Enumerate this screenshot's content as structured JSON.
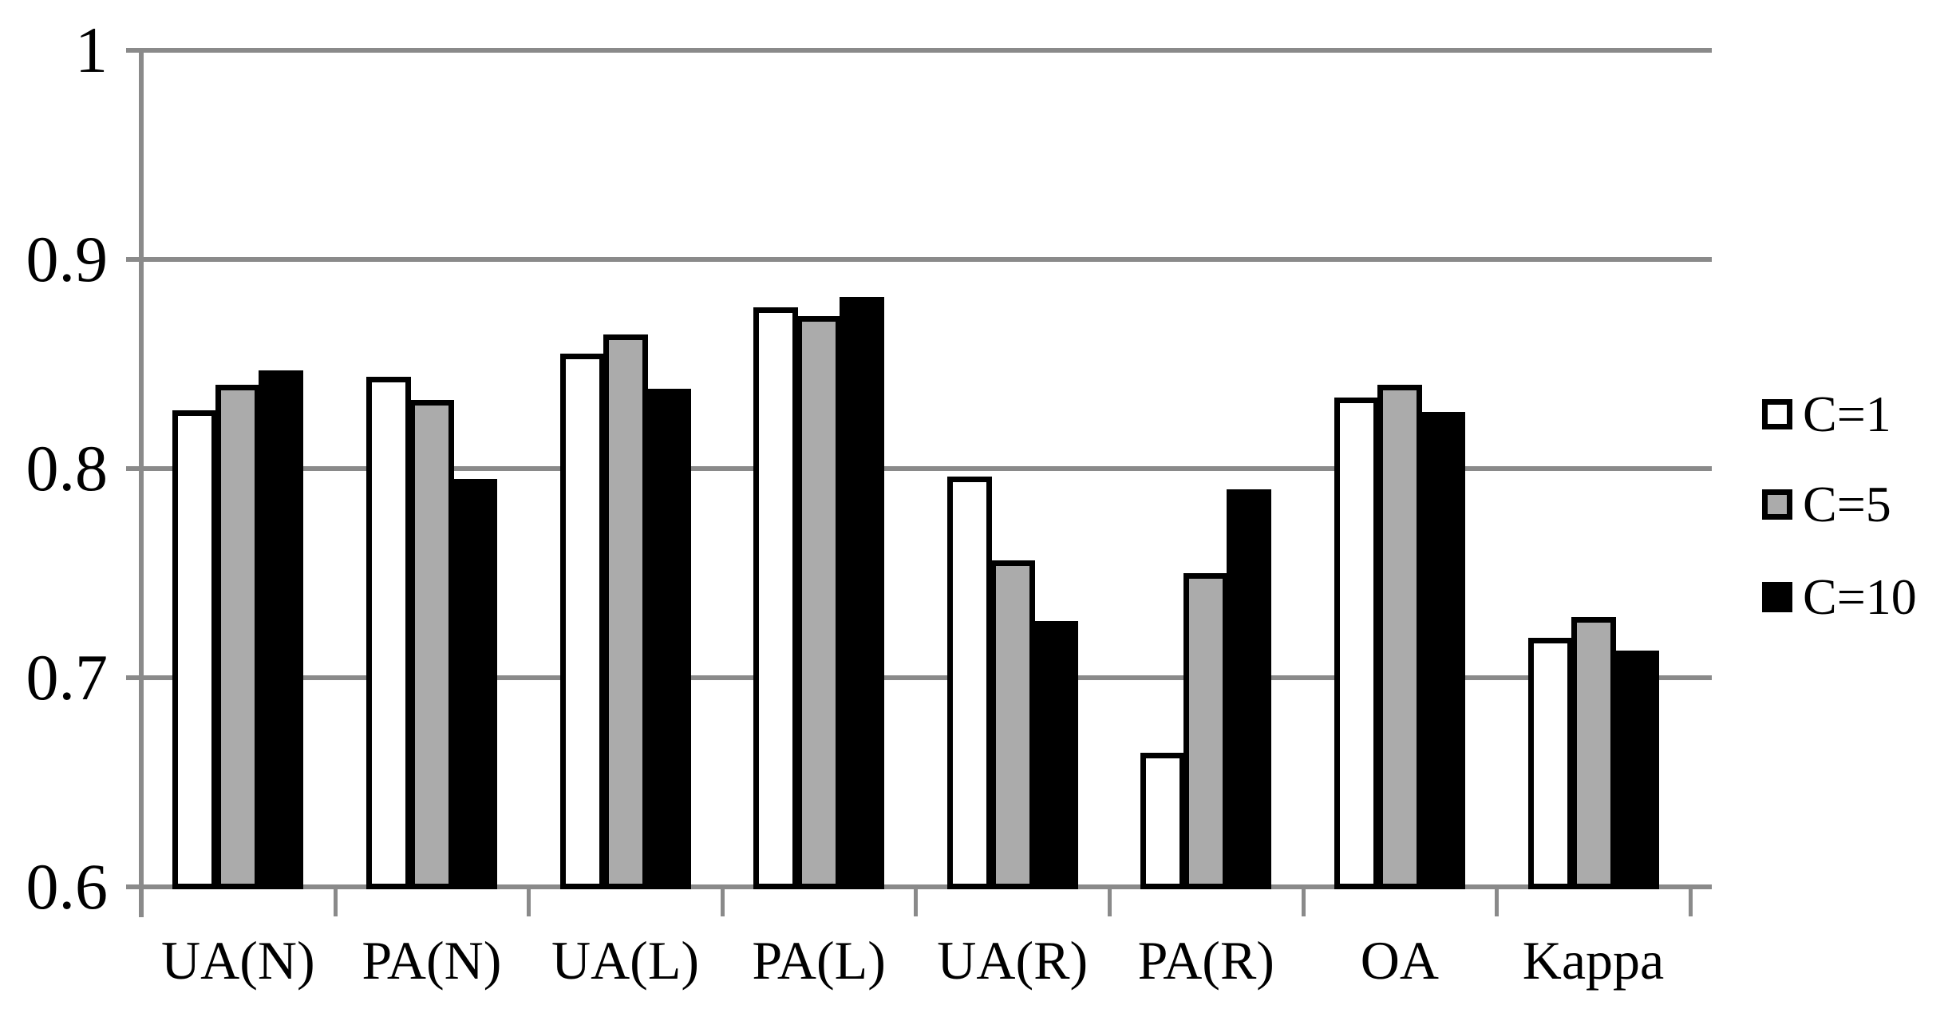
{
  "chart_data": {
    "type": "bar",
    "title": "",
    "xlabel": "",
    "ylabel": "",
    "categories": [
      "UA(N)",
      "PA(N)",
      "UA(L)",
      "PA(L)",
      "UA(R)",
      "PA(R)",
      "OA",
      "Kappa"
    ],
    "series": [
      {
        "name": "C=1",
        "color": "#ffffff",
        "values": [
          0.828,
          0.844,
          0.855,
          0.877,
          0.796,
          0.664,
          0.834,
          0.719
        ]
      },
      {
        "name": "C=5",
        "color": "#ababab",
        "values": [
          0.84,
          0.833,
          0.864,
          0.873,
          0.756,
          0.75,
          0.84,
          0.729
        ]
      },
      {
        "name": "C=10",
        "color": "#000000",
        "values": [
          0.847,
          0.795,
          0.838,
          0.882,
          0.727,
          0.79,
          0.827,
          0.713
        ]
      }
    ],
    "ylim": [
      0.6,
      1.0
    ],
    "yticks": [
      {
        "value": 0.6,
        "label": "0.6"
      },
      {
        "value": 0.7,
        "label": "0.7"
      },
      {
        "value": 0.8,
        "label": "0.8"
      },
      {
        "value": 0.9,
        "label": "0.9"
      },
      {
        "value": 1.0,
        "label": "1"
      }
    ],
    "grid": "horizontal",
    "legend_position": "right",
    "colors": {
      "axis_line": "#8a8a8a",
      "bar_outline": "#000000",
      "background": "#ffffff",
      "text": "#000000"
    }
  }
}
